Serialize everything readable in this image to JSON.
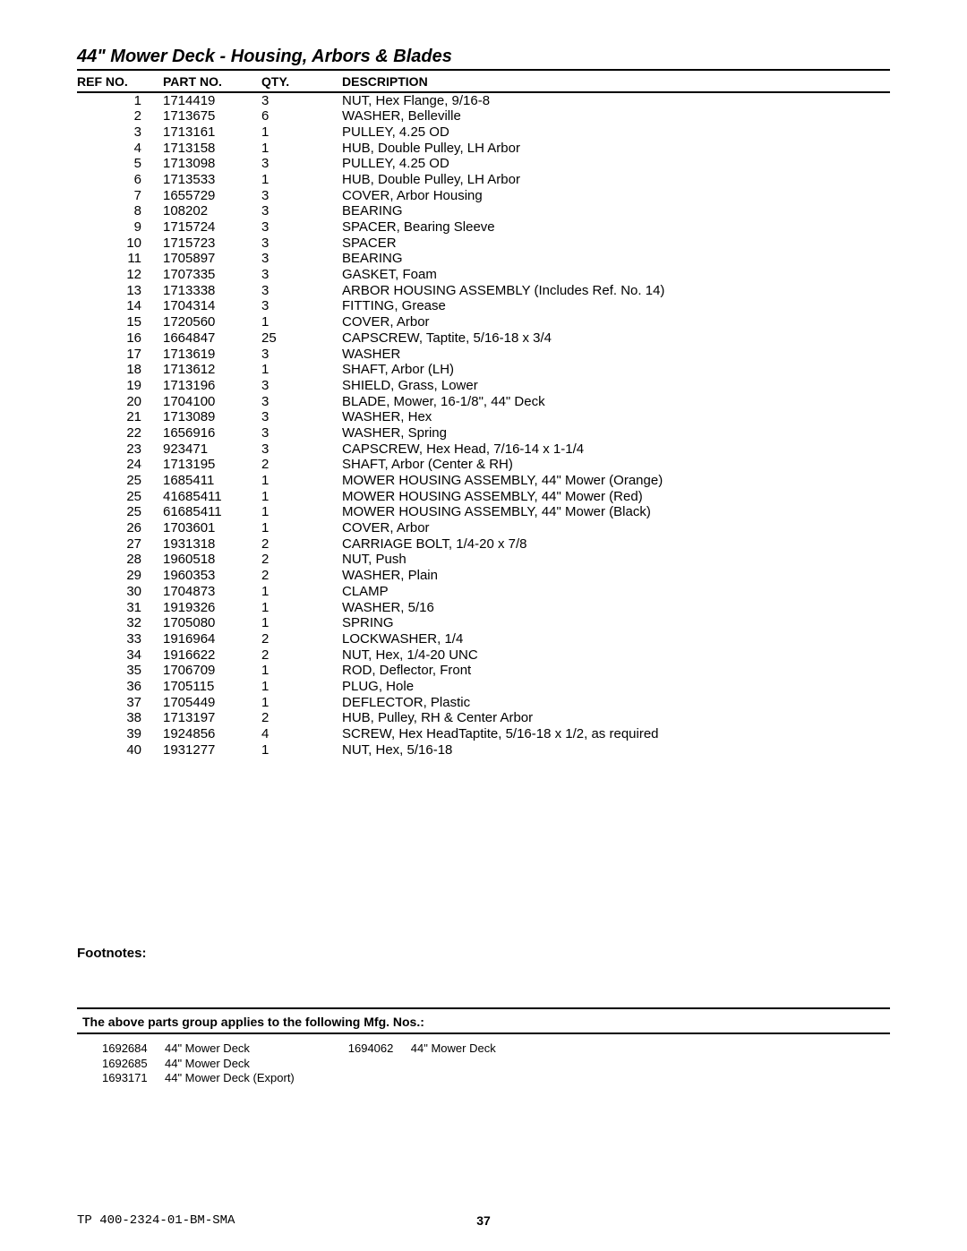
{
  "title": "44\" Mower Deck - Housing, Arbors & Blades",
  "columns": {
    "ref": "REF NO.",
    "part": "PART NO.",
    "qty": "QTY.",
    "desc": "DESCRIPTION"
  },
  "rows": [
    {
      "ref": "1",
      "part": "1714419",
      "qty": "3",
      "desc": "NUT, Hex Flange, 9/16-8"
    },
    {
      "ref": "2",
      "part": "1713675",
      "qty": "6",
      "desc": "WASHER, Belleville"
    },
    {
      "ref": "3",
      "part": "1713161",
      "qty": "1",
      "desc": "PULLEY, 4.25 OD"
    },
    {
      "ref": "4",
      "part": "1713158",
      "qty": "1",
      "desc": "HUB, Double Pulley, LH Arbor"
    },
    {
      "ref": "5",
      "part": "1713098",
      "qty": "3",
      "desc": "PULLEY, 4.25 OD"
    },
    {
      "ref": "6",
      "part": "1713533",
      "qty": "1",
      "desc": "HUB, Double Pulley, LH Arbor"
    },
    {
      "ref": "7",
      "part": "1655729",
      "qty": "3",
      "desc": "COVER, Arbor Housing"
    },
    {
      "ref": "8",
      "part": "108202",
      "qty": "3",
      "desc": "BEARING"
    },
    {
      "ref": "9",
      "part": "1715724",
      "qty": "3",
      "desc": "SPACER, Bearing Sleeve"
    },
    {
      "ref": "10",
      "part": "1715723",
      "qty": "3",
      "desc": "SPACER"
    },
    {
      "ref": "11",
      "part": "1705897",
      "qty": "3",
      "desc": "BEARING"
    },
    {
      "ref": "12",
      "part": "1707335",
      "qty": "3",
      "desc": "GASKET, Foam"
    },
    {
      "ref": "13",
      "part": "1713338",
      "qty": "3",
      "desc": "ARBOR HOUSING ASSEMBLY (Includes  Ref. No. 14)"
    },
    {
      "ref": "14",
      "part": "1704314",
      "qty": "3",
      "desc": "FITTING, Grease"
    },
    {
      "ref": "15",
      "part": "1720560",
      "qty": "1",
      "desc": "COVER, Arbor"
    },
    {
      "ref": "16",
      "part": "1664847",
      "qty": "25",
      "desc": "CAPSCREW, Taptite, 5/16-18 x 3/4"
    },
    {
      "ref": "17",
      "part": "1713619",
      "qty": "3",
      "desc": "WASHER"
    },
    {
      "ref": "18",
      "part": "1713612",
      "qty": "1",
      "desc": "SHAFT, Arbor (LH)"
    },
    {
      "ref": "19",
      "part": "1713196",
      "qty": "3",
      "desc": "SHIELD, Grass, Lower"
    },
    {
      "ref": "20",
      "part": "1704100",
      "qty": "3",
      "desc": "BLADE, Mower, 16-1/8\", 44\" Deck"
    },
    {
      "ref": "21",
      "part": "1713089",
      "qty": "3",
      "desc": "WASHER, Hex"
    },
    {
      "ref": "22",
      "part": "1656916",
      "qty": "3",
      "desc": "WASHER, Spring"
    },
    {
      "ref": "23",
      "part": "923471",
      "qty": "3",
      "desc": "CAPSCREW, Hex Head, 7/16-14 x 1-1/4"
    },
    {
      "ref": "24",
      "part": "1713195",
      "qty": "2",
      "desc": "SHAFT, Arbor (Center & RH)"
    },
    {
      "ref": "25",
      "part": "1685411",
      "qty": "1",
      "desc": "MOWER HOUSING ASSEMBLY, 44\" Mower (Orange)"
    },
    {
      "ref": "25",
      "part": "41685411",
      "qty": "1",
      "desc": "MOWER HOUSING ASSEMBLY, 44\" Mower (Red)"
    },
    {
      "ref": "25",
      "part": "61685411",
      "qty": "1",
      "desc": "MOWER HOUSING ASSEMBLY, 44\" Mower (Black)"
    },
    {
      "ref": "26",
      "part": "1703601",
      "qty": "1",
      "desc": "COVER, Arbor"
    },
    {
      "ref": "27",
      "part": "1931318",
      "qty": "2",
      "desc": "CARRIAGE BOLT, 1/4-20 x 7/8"
    },
    {
      "ref": "28",
      "part": "1960518",
      "qty": "2",
      "desc": "NUT, Push"
    },
    {
      "ref": "29",
      "part": "1960353",
      "qty": "2",
      "desc": "WASHER, Plain"
    },
    {
      "ref": "30",
      "part": "1704873",
      "qty": "1",
      "desc": "CLAMP"
    },
    {
      "ref": "31",
      "part": "1919326",
      "qty": "1",
      "desc": "WASHER, 5/16"
    },
    {
      "ref": "32",
      "part": "1705080",
      "qty": "1",
      "desc": "SPRING"
    },
    {
      "ref": "33",
      "part": "1916964",
      "qty": "2",
      "desc": "LOCKWASHER, 1/4"
    },
    {
      "ref": "34",
      "part": "1916622",
      "qty": "2",
      "desc": "NUT, Hex, 1/4-20 UNC"
    },
    {
      "ref": "35",
      "part": "1706709",
      "qty": "1",
      "desc": "ROD, Deflector, Front"
    },
    {
      "ref": "36",
      "part": "1705115",
      "qty": "1",
      "desc": "PLUG, Hole"
    },
    {
      "ref": "37",
      "part": "1705449",
      "qty": "1",
      "desc": "DEFLECTOR, Plastic"
    },
    {
      "ref": "38",
      "part": "1713197",
      "qty": "2",
      "desc": "HUB, Pulley, RH & Center Arbor"
    },
    {
      "ref": "39",
      "part": "1924856",
      "qty": "4",
      "desc": "SCREW, Hex HeadTaptite, 5/16-18 x 1/2, as required"
    },
    {
      "ref": "40",
      "part": "1931277",
      "qty": "1",
      "desc": "NUT, Hex, 5/16-18"
    }
  ],
  "footnotes_label": "Footnotes:",
  "mfg_heading": "The above parts group applies to the following Mfg. Nos.:",
  "mfg_columns": [
    [
      {
        "no": "1692684",
        "desc": "44\" Mower Deck"
      },
      {
        "no": "1692685",
        "desc": "44\" Mower Deck"
      },
      {
        "no": "1693171",
        "desc": "44\" Mower Deck (Export)"
      }
    ],
    [
      {
        "no": "1694062",
        "desc": "44\" Mower Deck"
      }
    ]
  ],
  "footer_doc": "TP 400-2324-01-BM-SMA",
  "footer_page": "37"
}
